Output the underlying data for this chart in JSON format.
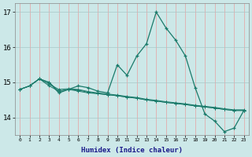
{
  "x": [
    0,
    1,
    2,
    3,
    4,
    5,
    6,
    7,
    8,
    9,
    10,
    11,
    12,
    13,
    14,
    15,
    16,
    17,
    18,
    19,
    20,
    21,
    22,
    23
  ],
  "line1": [
    14.8,
    14.9,
    15.1,
    15.0,
    14.7,
    14.8,
    14.9,
    14.85,
    14.75,
    14.7,
    15.5,
    15.2,
    15.75,
    16.1,
    17.0,
    16.55,
    16.2,
    15.75,
    14.85,
    14.1,
    13.9,
    13.6,
    13.7,
    14.2
  ],
  "line2": [
    14.8,
    14.9,
    15.1,
    14.9,
    14.75,
    14.8,
    14.75,
    14.7,
    14.68,
    14.65,
    14.62,
    14.58,
    14.55,
    14.5,
    14.47,
    14.43,
    14.4,
    14.37,
    14.33,
    14.3,
    14.27,
    14.23,
    14.2,
    14.2
  ],
  "line3": [
    14.8,
    14.9,
    15.1,
    15.0,
    14.75,
    14.8,
    14.78,
    14.72,
    14.68,
    14.65,
    14.62,
    14.58,
    14.55,
    14.5,
    14.47,
    14.43,
    14.4,
    14.37,
    14.33,
    14.3,
    14.27,
    14.23,
    14.2,
    14.2
  ],
  "line4": [
    14.8,
    14.9,
    15.1,
    14.95,
    14.8,
    14.82,
    14.8,
    14.74,
    14.7,
    14.67,
    14.64,
    14.6,
    14.57,
    14.52,
    14.49,
    14.45,
    14.42,
    14.39,
    14.35,
    14.32,
    14.29,
    14.25,
    14.22,
    14.22
  ],
  "color": "#1a7a6a",
  "bg_color": "#cce8e8",
  "grid_color_v": "#e8a0a0",
  "grid_color_h": "#a8c8c8",
  "xlabel": "Humidex (Indice chaleur)",
  "ylim": [
    13.5,
    17.25
  ],
  "yticks": [
    14,
    15,
    16,
    17
  ],
  "xticks": [
    0,
    1,
    2,
    3,
    4,
    5,
    6,
    7,
    8,
    9,
    10,
    11,
    12,
    13,
    14,
    15,
    16,
    17,
    18,
    19,
    20,
    21,
    22,
    23
  ],
  "xlim": [
    -0.5,
    23.5
  ]
}
